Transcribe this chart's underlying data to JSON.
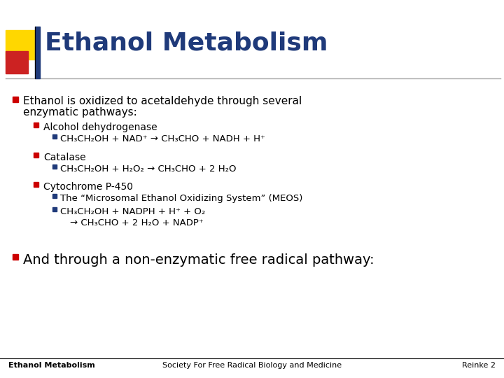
{
  "title": "Ethanol Metabolism",
  "title_color": "#1F3A7A",
  "title_fontsize": 26,
  "bg_color": "#FFFFFF",
  "footer_left": "Ethanol Metabolism",
  "footer_center": "Society For Free Radical Biology and Medicine",
  "footer_right": "Reinke 2",
  "footer_fontsize": 8,
  "bullet_color": "#CC0000",
  "bullet2_color": "#CC0000",
  "header_bar_color": "#AAAAAA",
  "decoration_gold": "#FFD700",
  "decoration_red": "#CC2222",
  "decoration_blue": "#1F3A7A",
  "sub_bullet_color_blue": "#1F3A7A"
}
